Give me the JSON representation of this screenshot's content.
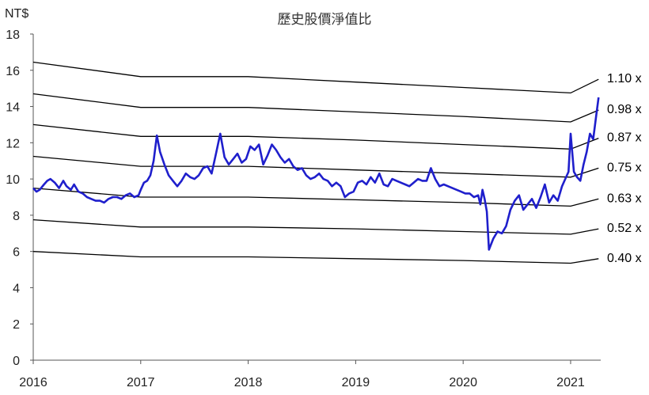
{
  "chart_data": {
    "type": "line",
    "title": "歷史股價淨值比",
    "ylabel": "NT$",
    "xlabel": "",
    "ylim": [
      0,
      18
    ],
    "xlim": [
      2016.0,
      2021.28
    ],
    "grid": false,
    "y_ticks": [
      "0",
      "2",
      "4",
      "6",
      "8",
      "10",
      "12",
      "14",
      "16",
      "18"
    ],
    "x_ticks": [
      "2016",
      "2017",
      "2018",
      "2019",
      "2020",
      "2021"
    ],
    "colors": {
      "price": "#1f1fcc",
      "bands": "#000000"
    },
    "bands": [
      {
        "label": "1.10 x",
        "x": [
          2016.0,
          2017.0,
          2018.0,
          2019.0,
          2020.0,
          2021.0,
          2021.26
        ],
        "values": [
          16.45,
          15.65,
          15.65,
          15.35,
          15.05,
          14.75,
          15.5
        ]
      },
      {
        "label": "0.98 x",
        "x": [
          2016.0,
          2017.0,
          2018.0,
          2019.0,
          2020.0,
          2021.0,
          2021.26
        ],
        "values": [
          14.7,
          13.95,
          13.95,
          13.7,
          13.45,
          13.15,
          13.8
        ]
      },
      {
        "label": "0.87 x",
        "x": [
          2016.0,
          2017.0,
          2018.0,
          2019.0,
          2020.0,
          2021.0,
          2021.26
        ],
        "values": [
          13.0,
          12.35,
          12.35,
          12.15,
          11.9,
          11.65,
          12.25
        ]
      },
      {
        "label": "0.75 x",
        "x": [
          2016.0,
          2017.0,
          2018.0,
          2019.0,
          2020.0,
          2021.0,
          2021.26
        ],
        "values": [
          11.25,
          10.7,
          10.7,
          10.5,
          10.3,
          10.1,
          10.6
        ]
      },
      {
        "label": "0.63 x",
        "x": [
          2016.0,
          2017.0,
          2018.0,
          2019.0,
          2020.0,
          2021.0,
          2021.26
        ],
        "values": [
          9.5,
          9.0,
          9.0,
          8.85,
          8.7,
          8.5,
          8.9
        ]
      },
      {
        "label": "0.52 x",
        "x": [
          2016.0,
          2017.0,
          2018.0,
          2019.0,
          2020.0,
          2021.0,
          2021.26
        ],
        "values": [
          7.75,
          7.35,
          7.35,
          7.25,
          7.1,
          6.95,
          7.25
        ]
      },
      {
        "label": "0.40 x",
        "x": [
          2016.0,
          2017.0,
          2018.0,
          2019.0,
          2020.0,
          2021.0,
          2021.26
        ],
        "values": [
          6.0,
          5.7,
          5.7,
          5.6,
          5.5,
          5.35,
          5.6
        ]
      }
    ],
    "price": {
      "x": [
        2016.0,
        2016.03,
        2016.06,
        2016.1,
        2016.13,
        2016.16,
        2016.2,
        2016.24,
        2016.28,
        2016.31,
        2016.35,
        2016.38,
        2016.42,
        2016.46,
        2016.5,
        2016.54,
        2016.58,
        2016.62,
        2016.66,
        2016.7,
        2016.74,
        2016.78,
        2016.82,
        2016.86,
        2016.9,
        2016.94,
        2016.98,
        2017.0,
        2017.03,
        2017.06,
        2017.09,
        2017.12,
        2017.15,
        2017.18,
        2017.22,
        2017.26,
        2017.3,
        2017.34,
        2017.38,
        2017.42,
        2017.46,
        2017.5,
        2017.54,
        2017.58,
        2017.62,
        2017.66,
        2017.7,
        2017.74,
        2017.78,
        2017.82,
        2017.86,
        2017.9,
        2017.94,
        2017.98,
        2018.02,
        2018.06,
        2018.1,
        2018.14,
        2018.18,
        2018.22,
        2018.26,
        2018.3,
        2018.34,
        2018.38,
        2018.42,
        2018.46,
        2018.5,
        2018.54,
        2018.58,
        2018.62,
        2018.66,
        2018.7,
        2018.74,
        2018.78,
        2018.82,
        2018.86,
        2018.9,
        2018.94,
        2018.98,
        2019.02,
        2019.06,
        2019.1,
        2019.14,
        2019.18,
        2019.22,
        2019.26,
        2019.3,
        2019.34,
        2019.38,
        2019.42,
        2019.46,
        2019.5,
        2019.54,
        2019.58,
        2019.62,
        2019.66,
        2019.7,
        2019.74,
        2019.78,
        2019.82,
        2019.86,
        2019.9,
        2019.94,
        2019.98,
        2020.02,
        2020.06,
        2020.1,
        2020.14,
        2020.16,
        2020.18,
        2020.2,
        2020.22,
        2020.24,
        2020.28,
        2020.32,
        2020.36,
        2020.4,
        2020.44,
        2020.48,
        2020.52,
        2020.56,
        2020.6,
        2020.64,
        2020.68,
        2020.72,
        2020.76,
        2020.8,
        2020.84,
        2020.88,
        2020.92,
        2020.95,
        2020.98,
        2021.0,
        2021.03,
        2021.06,
        2021.09,
        2021.12,
        2021.15,
        2021.18,
        2021.21,
        2021.24,
        2021.26
      ],
      "values": [
        9.5,
        9.3,
        9.4,
        9.7,
        9.9,
        10.0,
        9.8,
        9.5,
        9.9,
        9.6,
        9.4,
        9.7,
        9.3,
        9.2,
        9.0,
        8.9,
        8.8,
        8.8,
        8.7,
        8.9,
        9.0,
        9.0,
        8.9,
        9.1,
        9.2,
        9.0,
        9.1,
        9.4,
        9.8,
        9.9,
        10.2,
        11.0,
        12.4,
        11.5,
        10.8,
        10.2,
        9.9,
        9.6,
        9.9,
        10.3,
        10.1,
        10.0,
        10.2,
        10.6,
        10.7,
        10.3,
        11.4,
        12.5,
        11.2,
        10.8,
        11.1,
        11.4,
        10.9,
        11.1,
        11.8,
        11.6,
        11.9,
        10.8,
        11.3,
        11.9,
        11.6,
        11.2,
        10.9,
        11.1,
        10.7,
        10.5,
        10.6,
        10.2,
        10.0,
        10.1,
        10.3,
        10.0,
        9.9,
        9.6,
        9.8,
        9.6,
        9.0,
        9.2,
        9.3,
        9.8,
        9.9,
        9.7,
        10.1,
        9.8,
        10.3,
        9.7,
        9.6,
        10.0,
        9.9,
        9.8,
        9.7,
        9.6,
        9.8,
        10.0,
        9.9,
        9.9,
        10.6,
        10.0,
        9.6,
        9.7,
        9.6,
        9.5,
        9.4,
        9.3,
        9.2,
        9.2,
        9.0,
        9.1,
        8.6,
        9.4,
        8.9,
        8.2,
        6.1,
        6.7,
        7.1,
        7.0,
        7.4,
        8.3,
        8.8,
        9.1,
        8.3,
        8.6,
        8.9,
        8.4,
        9.0,
        9.7,
        8.7,
        9.1,
        8.8,
        9.6,
        10.0,
        10.4,
        12.5,
        10.4,
        10.1,
        9.9,
        10.8,
        11.5,
        12.5,
        12.2,
        13.6,
        14.5
      ]
    }
  }
}
